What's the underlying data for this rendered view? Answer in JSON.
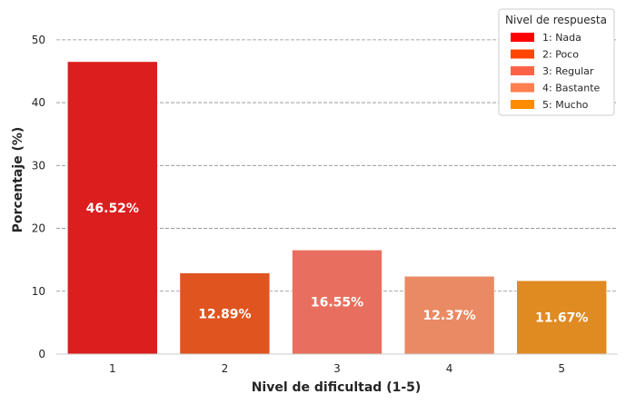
{
  "chart_data": {
    "type": "bar",
    "title": "",
    "xlabel": "Nivel de dificultad (1-5)",
    "ylabel": "Porcentaje (%)",
    "categories": [
      "1",
      "2",
      "3",
      "4",
      "5"
    ],
    "values": [
      46.52,
      12.89,
      16.55,
      12.37,
      11.67
    ],
    "value_labels": [
      "46.52%",
      "12.89%",
      "16.55%",
      "12.37%",
      "11.67%"
    ],
    "bar_colors": [
      "#dc1e1e",
      "#e0541f",
      "#e86f5f",
      "#ea8a64",
      "#e08a22"
    ],
    "ylim": [
      0,
      52
    ],
    "yticks": [
      0,
      10,
      20,
      30,
      40,
      50
    ],
    "grid": "horizontal dashed",
    "legend": {
      "title": "Nivel de respuesta",
      "placement": "top-right",
      "items": [
        {
          "label": "1: Nada",
          "color": "#ff0000"
        },
        {
          "label": "2: Poco",
          "color": "#ff4500"
        },
        {
          "label": "3: Regular",
          "color": "#ff6347"
        },
        {
          "label": "4: Bastante",
          "color": "#ff7f50"
        },
        {
          "label": "5: Mucho",
          "color": "#ff8c00"
        }
      ]
    }
  }
}
